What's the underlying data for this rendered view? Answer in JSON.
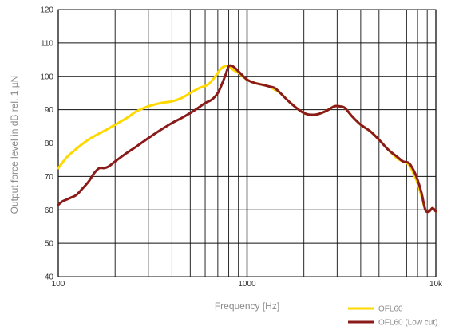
{
  "chart_data": {
    "type": "line",
    "title": "",
    "xlabel": "Frequency [Hz]",
    "ylabel": "Output force level in dB rel. 1 µN",
    "x_scale": "log",
    "xlim": [
      100,
      10000
    ],
    "ylim": [
      40,
      120
    ],
    "x_ticks": [
      {
        "value": 100,
        "label": "100"
      },
      {
        "value": 1000,
        "label": "1000"
      },
      {
        "value": 10000,
        "label": "10k"
      }
    ],
    "y_ticks": [
      40,
      50,
      60,
      70,
      80,
      90,
      100,
      110,
      120
    ],
    "grid": true,
    "legend_position": "bottom-right",
    "series": [
      {
        "name": "OFL60",
        "color": "#ffd800",
        "x": [
          100,
          110,
          120,
          140,
          160,
          180,
          200,
          230,
          260,
          300,
          350,
          400,
          450,
          500,
          560,
          620,
          680,
          720,
          760,
          800,
          840,
          900,
          1000,
          1100,
          1200,
          1300,
          1400,
          1500,
          1700,
          2000,
          2300,
          2600,
          2900,
          3100,
          3300,
          3600,
          4000,
          4500,
          5000,
          5600,
          6200,
          6700,
          7200,
          7600,
          8000,
          8400,
          8800,
          9200,
          9600,
          10000
        ],
        "values": [
          72.5,
          75.5,
          77.5,
          80.5,
          82.5,
          84,
          85.5,
          87.5,
          89.5,
          91,
          92,
          92.5,
          93.5,
          95,
          96.5,
          97.5,
          100,
          102,
          103,
          103,
          102,
          101,
          99,
          98,
          97.5,
          97,
          96,
          95,
          92,
          89,
          88.5,
          89.5,
          91,
          91,
          90.5,
          88,
          85.5,
          83.5,
          81,
          78,
          75.5,
          74.5,
          73.5,
          71,
          68,
          64,
          60,
          59.5,
          60.5,
          59.5
        ]
      },
      {
        "name": "OFL60 (Low cut)",
        "color": "#8b1a1a",
        "x": [
          100,
          105,
          115,
          125,
          135,
          145,
          155,
          165,
          175,
          185,
          200,
          230,
          260,
          300,
          350,
          400,
          450,
          500,
          550,
          600,
          650,
          700,
          740,
          770,
          800,
          840,
          900,
          1000,
          1100,
          1200,
          1300,
          1400,
          1500,
          1700,
          2000,
          2300,
          2600,
          2900,
          3100,
          3300,
          3600,
          4000,
          4500,
          5000,
          5600,
          6200,
          6700,
          7200,
          7600,
          8000,
          8400,
          8800,
          9200,
          9600,
          10000
        ],
        "values": [
          61.5,
          62.5,
          63.5,
          64.5,
          66.5,
          68.5,
          71,
          72.5,
          72.5,
          73,
          74.5,
          77,
          79,
          81.5,
          84,
          86,
          87.5,
          89,
          90.5,
          92,
          93,
          95,
          98,
          100.5,
          103,
          103,
          101.5,
          99,
          98,
          97.5,
          97,
          96.5,
          95,
          92,
          89,
          88.5,
          89.5,
          91,
          91,
          90.5,
          88,
          85.5,
          83.5,
          81,
          78,
          76,
          74.5,
          74,
          72,
          69,
          65,
          60,
          59.5,
          60.5,
          59.5
        ]
      }
    ]
  }
}
